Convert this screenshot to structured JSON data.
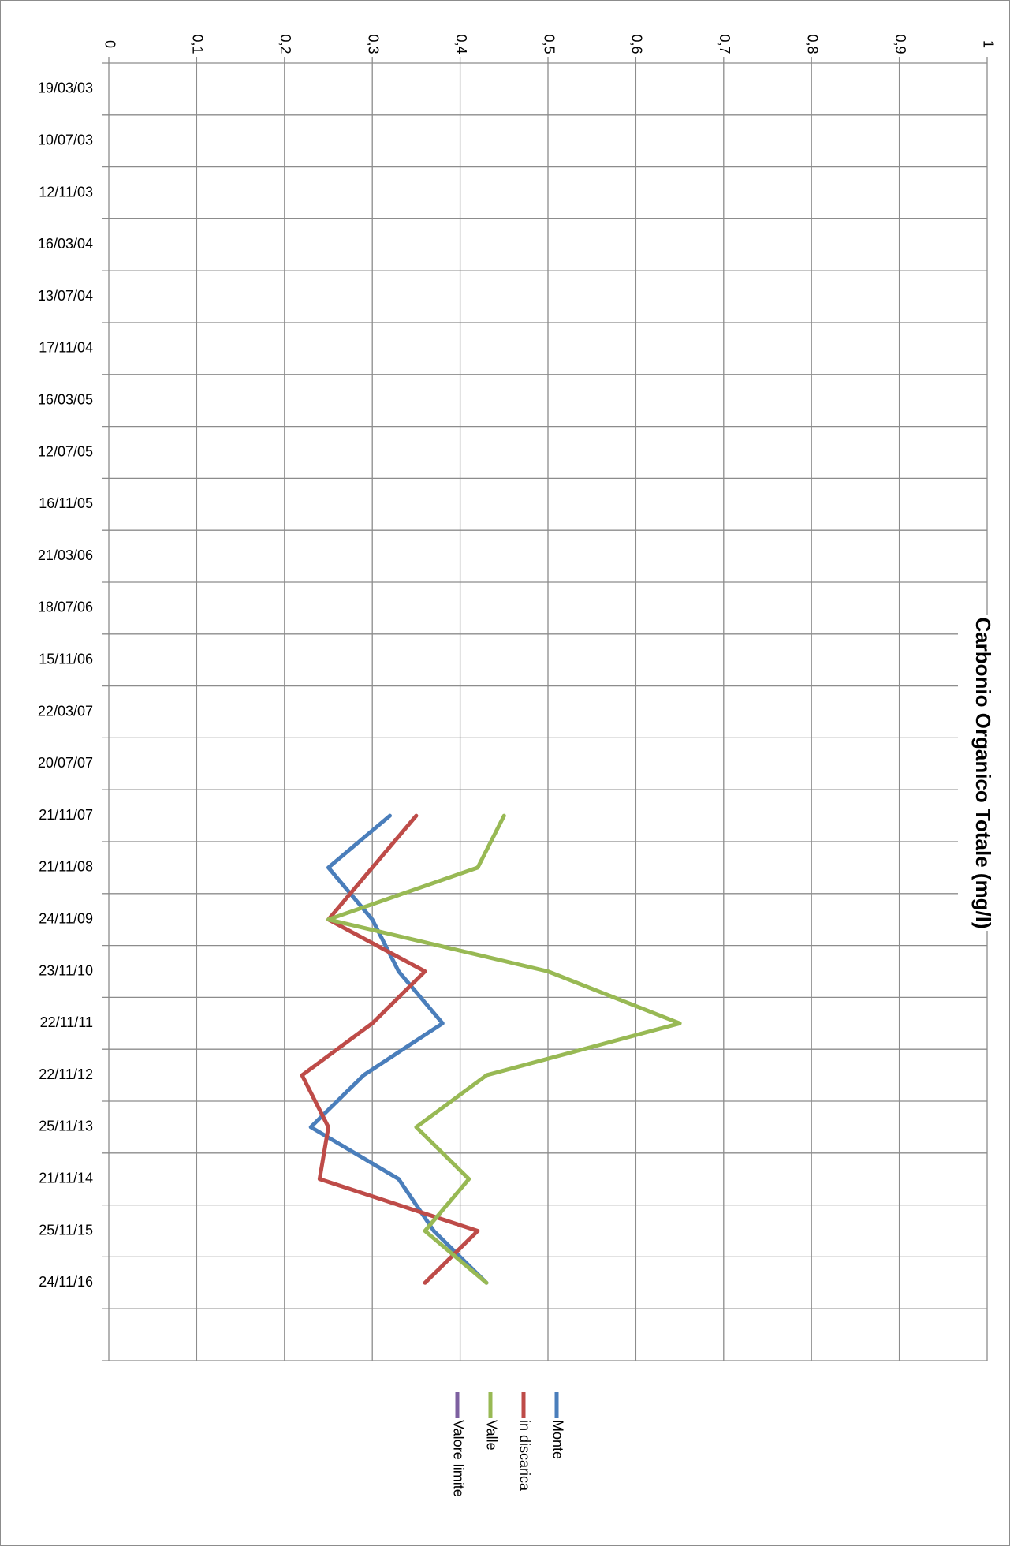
{
  "chart_data": {
    "type": "line",
    "title": "Carbonio Organico Totale (mg/l)",
    "xlim": [
      0,
      1
    ],
    "x_ticks": [
      "0",
      "0,1",
      "0,2",
      "0,3",
      "0,4",
      "0,5",
      "0,6",
      "0,7",
      "0,8",
      "0,9",
      "1"
    ],
    "categories": [
      "19/03/03",
      "10/07/03",
      "12/11/03",
      "16/03/04",
      "13/07/04",
      "17/11/04",
      "16/03/05",
      "12/07/05",
      "16/11/05",
      "21/03/06",
      "18/07/06",
      "15/11/06",
      "22/03/07",
      "20/07/07",
      "21/11/07",
      "21/11/08",
      "24/11/09",
      "23/11/10",
      "22/11/11",
      "22/11/12",
      "25/11/13",
      "21/11/14",
      "25/11/15",
      "24/11/16",
      "",
      ""
    ],
    "grid": true,
    "legend_position": "bottom",
    "series": [
      {
        "name": "Monte",
        "color": "#4a7ebb",
        "values": [
          null,
          null,
          null,
          null,
          null,
          null,
          null,
          null,
          null,
          null,
          null,
          null,
          null,
          null,
          0.32,
          0.25,
          0.3,
          0.33,
          0.38,
          0.29,
          0.23,
          0.33,
          0.37,
          0.43,
          null,
          null
        ]
      },
      {
        "name": "in discarica",
        "color": "#be4b48",
        "values": [
          null,
          null,
          null,
          null,
          null,
          null,
          null,
          null,
          null,
          null,
          null,
          null,
          null,
          null,
          0.35,
          0.3,
          0.25,
          0.36,
          0.3,
          0.22,
          0.25,
          0.24,
          0.42,
          0.36,
          null,
          null
        ]
      },
      {
        "name": "Valle",
        "color": "#98b954",
        "values": [
          null,
          null,
          null,
          null,
          null,
          null,
          null,
          null,
          null,
          null,
          null,
          null,
          null,
          null,
          0.45,
          0.42,
          0.25,
          0.5,
          0.65,
          0.43,
          0.35,
          0.41,
          0.36,
          0.43,
          null,
          null
        ]
      },
      {
        "name": "Valore limite",
        "color": "#7d60a0",
        "values": [
          null,
          null,
          null,
          null,
          null,
          null,
          null,
          null,
          null,
          null,
          null,
          null,
          null,
          null,
          null,
          null,
          null,
          null,
          null,
          null,
          null,
          null,
          null,
          null,
          null,
          null
        ]
      }
    ]
  }
}
